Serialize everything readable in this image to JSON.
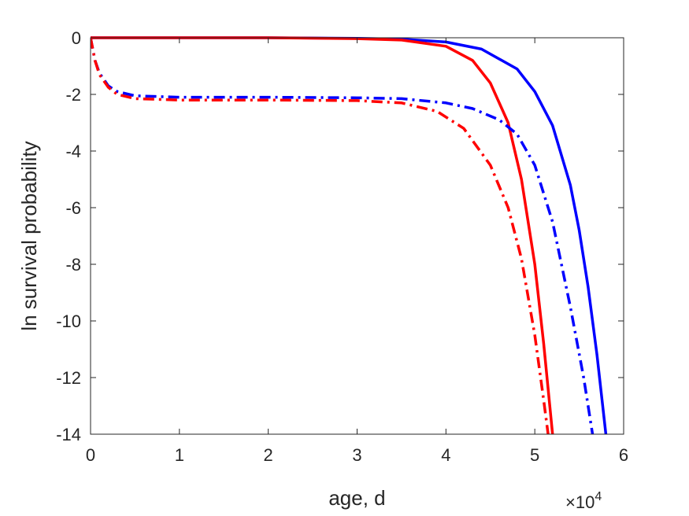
{
  "chart_data": {
    "type": "line",
    "title": "",
    "xlabel": "age, d",
    "ylabel": "ln survival probability",
    "x_exponent_base": "×10",
    "x_exponent_power": "4",
    "xlim": [
      0,
      6
    ],
    "ylim": [
      -14,
      0
    ],
    "grid": false,
    "legend": "none",
    "xticks": [
      0,
      1,
      2,
      3,
      4,
      5,
      6
    ],
    "xtick_labels": [
      "0",
      "1",
      "2",
      "3",
      "4",
      "5",
      "6"
    ],
    "yticks": [
      0,
      -2,
      -4,
      -6,
      -8,
      -10,
      -12,
      -14
    ],
    "ytick_labels": [
      "0",
      "-2",
      "-4",
      "-6",
      "-8",
      "-10",
      "-12",
      "-14"
    ],
    "series": [
      {
        "color": "#0000ff",
        "style": "solid",
        "x": [
          0,
          1,
          2,
          3,
          3.5,
          4,
          4.4,
          4.8,
          5.0,
          5.2,
          5.4,
          5.5,
          5.6,
          5.7,
          5.8
        ],
        "y": [
          0,
          0,
          0,
          -0.02,
          -0.05,
          -0.15,
          -0.4,
          -1.1,
          -1.9,
          -3.1,
          -5.2,
          -6.8,
          -8.8,
          -11.2,
          -14
        ]
      },
      {
        "color": "#ff0000",
        "style": "solid",
        "x": [
          0,
          1,
          2,
          3,
          3.5,
          4,
          4.3,
          4.5,
          4.7,
          4.85,
          5.0,
          5.1,
          5.2
        ],
        "y": [
          0,
          0,
          0,
          -0.03,
          -0.08,
          -0.3,
          -0.8,
          -1.6,
          -3.0,
          -5.0,
          -8.0,
          -10.8,
          -14
        ]
      },
      {
        "color": "#0000ff",
        "style": "dashdot",
        "x": [
          0,
          0.05,
          0.1,
          0.2,
          0.3,
          0.5,
          1,
          2,
          3,
          3.5,
          4,
          4.3,
          4.6,
          4.8,
          5.0,
          5.2,
          5.4,
          5.55,
          5.65
        ],
        "y": [
          0,
          -0.8,
          -1.25,
          -1.7,
          -1.9,
          -2.05,
          -2.1,
          -2.1,
          -2.12,
          -2.15,
          -2.3,
          -2.5,
          -2.9,
          -3.4,
          -4.5,
          -6.5,
          -9.5,
          -12,
          -14
        ]
      },
      {
        "color": "#ff0000",
        "style": "dashdot",
        "x": [
          0,
          0.05,
          0.1,
          0.2,
          0.3,
          0.5,
          1,
          2,
          3,
          3.5,
          3.9,
          4.2,
          4.5,
          4.7,
          4.85,
          5.0,
          5.1,
          5.15
        ],
        "y": [
          0,
          -0.8,
          -1.3,
          -1.75,
          -2.0,
          -2.15,
          -2.2,
          -2.2,
          -2.22,
          -2.3,
          -2.6,
          -3.2,
          -4.5,
          -6.0,
          -7.8,
          -10.5,
          -12.8,
          -14
        ]
      }
    ]
  }
}
